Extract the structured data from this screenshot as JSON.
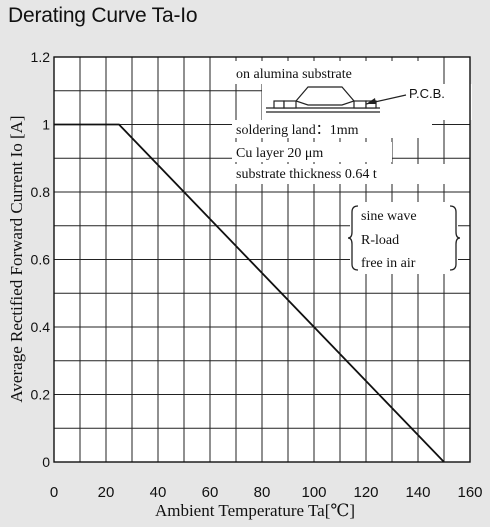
{
  "title": "Derating Curve Ta-Io",
  "chart_data": {
    "type": "line",
    "title": "Derating Curve Ta-Io",
    "xlabel": "Ambient Temperature Ta[℃]",
    "ylabel": "Average Rectified Forward Current Io [A]",
    "xlim": [
      0,
      160
    ],
    "ylim": [
      0,
      1.2
    ],
    "x_ticks": [
      "0",
      "20",
      "40",
      "60",
      "80",
      "100",
      "120",
      "140",
      "160"
    ],
    "y_ticks": [
      "0",
      "0.2",
      "0.4",
      "0.6",
      "0.8",
      "1",
      "1.2"
    ],
    "grid": true,
    "series": [
      {
        "x": [
          0,
          25,
          150
        ],
        "y": [
          1.0,
          1.0,
          0.0
        ]
      }
    ],
    "annotations": {
      "substrate": "on alumina substrate",
      "pcb": "P.C.B.",
      "land": "soldering land：1mm",
      "cu_layer": "Cu layer 20 μm",
      "thickness": "substrate thickness 0.64 t",
      "conditions": [
        "sine wave",
        "R-load",
        "free in air"
      ]
    }
  }
}
